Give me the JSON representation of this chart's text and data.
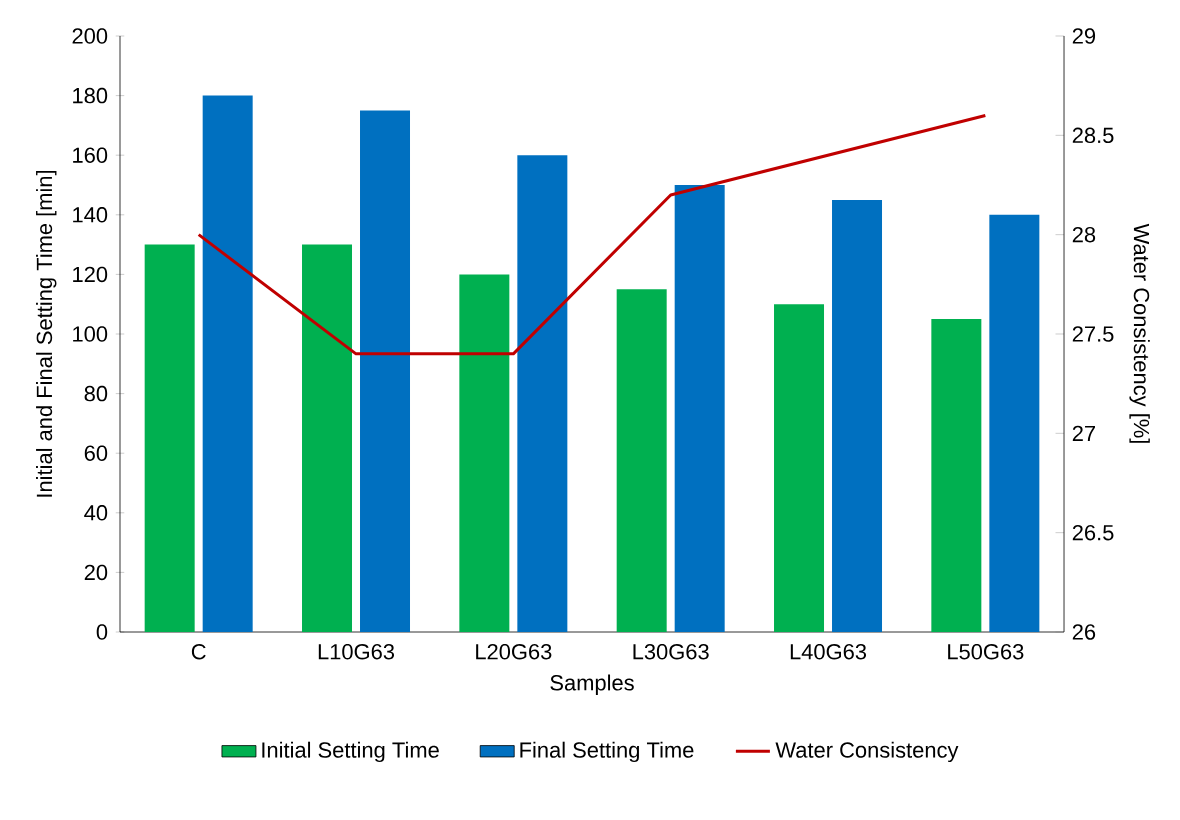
{
  "chart_data": {
    "type": "bar",
    "xlabel": "Samples",
    "ylabel": "Initial and Final Setting Time [min]",
    "y2label": "Water Consistency [%]",
    "categories": [
      "C",
      "L10G63",
      "L20G63",
      "L30G63",
      "L40G63",
      "L50G63"
    ],
    "series": [
      {
        "name": "Initial Setting Time",
        "color": "#00b050",
        "values": [
          130,
          130,
          120,
          115,
          110,
          105
        ]
      },
      {
        "name": "Final Setting Time",
        "color": "#0070c0",
        "values": [
          180,
          175,
          160,
          150,
          145,
          140
        ]
      },
      {
        "name": "Water Consistency",
        "type": "line",
        "axis": "y2",
        "color": "#c00000",
        "values": [
          28,
          27.4,
          27.4,
          28.2,
          28.4,
          28.6
        ]
      }
    ],
    "ylim": [
      0,
      200
    ],
    "yticks": [
      0,
      20,
      40,
      60,
      80,
      100,
      120,
      140,
      160,
      180,
      200
    ],
    "y2lim": [
      26,
      29
    ],
    "y2ticks": [
      26,
      26.5,
      27,
      27.5,
      28,
      28.5,
      29
    ],
    "legend": "bottom",
    "grid": false
  }
}
